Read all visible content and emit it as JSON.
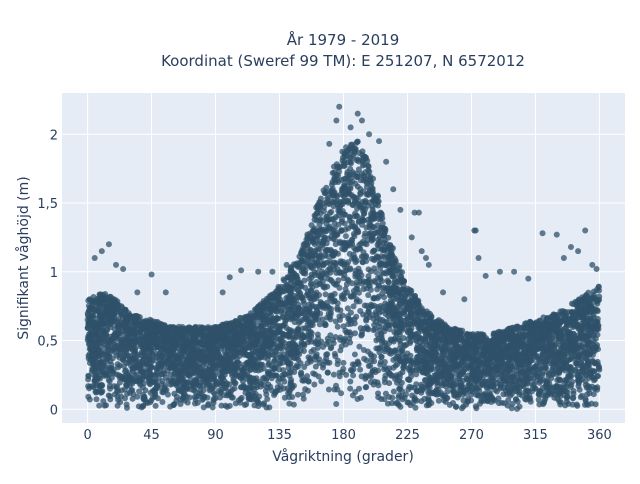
{
  "chart_data": {
    "type": "scatter",
    "title_line1": "År 1979 - 2019",
    "title_line2": "Koordinat (Sweref 99 TM): E 251207, N 6572012",
    "xlabel": "Vågriktning (grader)",
    "ylabel": "Signifikant våghöjd (m)",
    "xlim": [
      -18,
      378
    ],
    "ylim": [
      -0.1,
      2.3
    ],
    "xticks": [
      0,
      45,
      90,
      135,
      180,
      225,
      270,
      315,
      360
    ],
    "xtick_labels": [
      "0",
      "45",
      "90",
      "135",
      "180",
      "225",
      "270",
      "315",
      "360"
    ],
    "yticks": [
      0,
      0.5,
      1,
      1.5,
      2
    ],
    "ytick_labels": [
      "0",
      "0,5",
      "1",
      "1,5",
      "2"
    ],
    "grid": true,
    "marker_color": "#2f5269",
    "background_color": "#e5ecf6",
    "envelope": {
      "x": [
        0,
        10,
        20,
        30,
        45,
        60,
        75,
        90,
        105,
        120,
        135,
        150,
        160,
        170,
        180,
        190,
        200,
        210,
        225,
        240,
        255,
        270,
        285,
        300,
        315,
        330,
        345,
        360
      ],
      "y": [
        0.8,
        0.85,
        0.8,
        0.7,
        0.65,
        0.6,
        0.6,
        0.6,
        0.65,
        0.75,
        0.9,
        1.15,
        1.45,
        1.7,
        1.9,
        1.95,
        1.75,
        1.3,
        0.9,
        0.7,
        0.6,
        0.55,
        0.55,
        0.6,
        0.65,
        0.7,
        0.8,
        0.9
      ]
    },
    "outliers": [
      {
        "x": 10,
        "y": 1.15
      },
      {
        "x": 15,
        "y": 1.2
      },
      {
        "x": 5,
        "y": 1.1
      },
      {
        "x": 20,
        "y": 1.05
      },
      {
        "x": 25,
        "y": 1.02
      },
      {
        "x": 35,
        "y": 0.85
      },
      {
        "x": 45,
        "y": 0.98
      },
      {
        "x": 55,
        "y": 0.85
      },
      {
        "x": 95,
        "y": 0.85
      },
      {
        "x": 100,
        "y": 0.96
      },
      {
        "x": 108,
        "y": 1.01
      },
      {
        "x": 120,
        "y": 1.0
      },
      {
        "x": 130,
        "y": 1.0
      },
      {
        "x": 140,
        "y": 1.05
      },
      {
        "x": 170,
        "y": 1.93
      },
      {
        "x": 175,
        "y": 2.1
      },
      {
        "x": 177,
        "y": 2.2
      },
      {
        "x": 185,
        "y": 2.05
      },
      {
        "x": 190,
        "y": 2.15
      },
      {
        "x": 193,
        "y": 2.1
      },
      {
        "x": 198,
        "y": 2.0
      },
      {
        "x": 205,
        "y": 1.95
      },
      {
        "x": 210,
        "y": 1.8
      },
      {
        "x": 215,
        "y": 1.6
      },
      {
        "x": 220,
        "y": 1.45
      },
      {
        "x": 230,
        "y": 1.43
      },
      {
        "x": 233,
        "y": 1.43
      },
      {
        "x": 228,
        "y": 1.25
      },
      {
        "x": 235,
        "y": 1.15
      },
      {
        "x": 238,
        "y": 1.1
      },
      {
        "x": 240,
        "y": 1.05
      },
      {
        "x": 250,
        "y": 0.85
      },
      {
        "x": 265,
        "y": 0.8
      },
      {
        "x": 272,
        "y": 1.3
      },
      {
        "x": 273,
        "y": 1.3
      },
      {
        "x": 275,
        "y": 1.1
      },
      {
        "x": 280,
        "y": 0.97
      },
      {
        "x": 290,
        "y": 1.0
      },
      {
        "x": 300,
        "y": 1.0
      },
      {
        "x": 310,
        "y": 0.95
      },
      {
        "x": 320,
        "y": 1.28
      },
      {
        "x": 330,
        "y": 1.27
      },
      {
        "x": 335,
        "y": 1.1
      },
      {
        "x": 340,
        "y": 1.18
      },
      {
        "x": 345,
        "y": 1.15
      },
      {
        "x": 350,
        "y": 1.3
      },
      {
        "x": 355,
        "y": 1.05
      },
      {
        "x": 358,
        "y": 1.02
      }
    ]
  }
}
